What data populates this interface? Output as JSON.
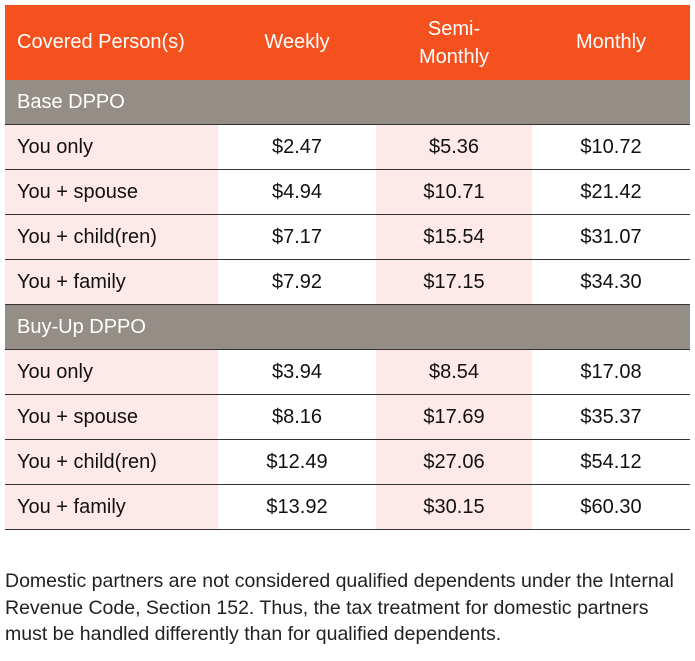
{
  "table": {
    "header": [
      "Covered Person(s)",
      "Weekly",
      "Semi-Monthly",
      "Monthly"
    ],
    "groups": [
      {
        "label": "Base DPPO",
        "rows": [
          [
            "You only",
            "$2.47",
            "$5.36",
            "$10.72"
          ],
          [
            "You + spouse",
            "$4.94",
            "$10.71",
            "$21.42"
          ],
          [
            "You + child(ren)",
            "$7.17",
            "$15.54",
            "$31.07"
          ],
          [
            "You + family",
            "$7.92",
            "$17.15",
            "$34.30"
          ]
        ]
      },
      {
        "label": "Buy-Up DPPO",
        "rows": [
          [
            "You only",
            "$3.94",
            "$8.54",
            "$17.08"
          ],
          [
            "You + spouse",
            "$8.16",
            "$17.69",
            "$35.37"
          ],
          [
            "You + child(ren)",
            "$12.49",
            "$27.06",
            "$54.12"
          ],
          [
            "You + family",
            "$13.92",
            "$30.15",
            "$60.30"
          ]
        ]
      }
    ]
  },
  "note": "Domestic partners are not considered qualified dependents under the Internal Revenue Code, Section 152. Thus, the tax treatment for domestic partners must be handled differently than for qualified dependents."
}
